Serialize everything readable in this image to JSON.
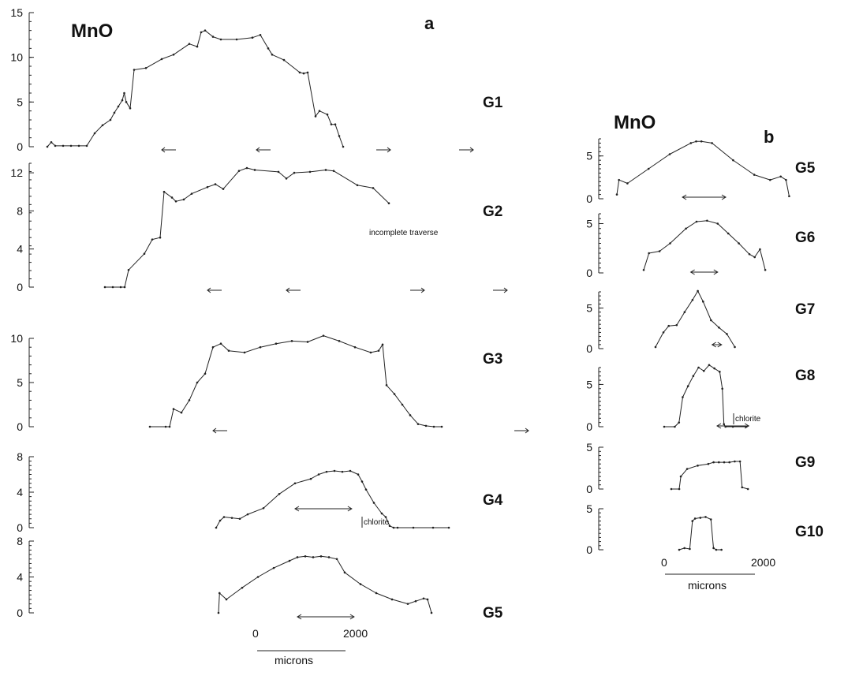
{
  "panel_a": {
    "title": "MnO",
    "letter": "a",
    "scale_bar": {
      "start_label": "0",
      "end_label": "2000",
      "unit_label": "microns"
    }
  },
  "panel_b": {
    "title": "MnO",
    "letter": "b",
    "scale_bar": {
      "start_label": "0",
      "end_label": "2000",
      "unit_label": "microns"
    }
  },
  "chart_data": [
    {
      "type": "line",
      "panel": "a",
      "name": "G1",
      "ylim": [
        0,
        15
      ],
      "yticks": [
        "0",
        "5",
        "10",
        "15"
      ],
      "x": [
        0,
        80,
        160,
        320,
        480,
        640,
        800,
        960,
        1120,
        1280,
        1360,
        1440,
        1520,
        1560,
        1600,
        1680,
        1760,
        2000,
        2320,
        2560,
        2880,
        3040,
        3120,
        3200,
        3360,
        3520,
        3840,
        4160,
        4320,
        4480,
        4560,
        4800,
        5120,
        5200,
        5280,
        5440,
        5520,
        5680,
        5760,
        5840,
        5920,
        6000
      ],
      "y": [
        0,
        0.5,
        0.1,
        0.1,
        0.1,
        0.1,
        0.1,
        1.5,
        2.4,
        3,
        3.8,
        4.5,
        5.2,
        6,
        5,
        4.3,
        8.6,
        8.8,
        9.8,
        10.3,
        11.5,
        11.2,
        12.8,
        13.0,
        12.3,
        12.0,
        12.0,
        12.2,
        12.5,
        11,
        10.3,
        9.7,
        8.3,
        8.2,
        8.3,
        3.4,
        4.0,
        3.6,
        2.5,
        2.5,
        1.2,
        0.0
      ],
      "arrows": [
        [
          2320,
          -1
        ],
        [
          4240,
          -1
        ],
        [
          6960,
          1
        ],
        [
          8640,
          1
        ]
      ]
    },
    {
      "type": "line",
      "panel": "a",
      "name": "G2",
      "ylim": [
        0,
        13
      ],
      "yticks": [
        "0",
        "4",
        "8",
        "12"
      ],
      "x": [
        0,
        160,
        320,
        400,
        480,
        800,
        960,
        1120,
        1200,
        1360,
        1440,
        1600,
        1760,
        2080,
        2240,
        2400,
        2720,
        2880,
        3040,
        3520,
        3680,
        3840,
        4160,
        4480,
        4640,
        5120,
        5440,
        5760
      ],
      "y": [
        0,
        0,
        0,
        0,
        1.8,
        3.5,
        5.0,
        5.2,
        10.0,
        9.4,
        9.0,
        9.2,
        9.8,
        10.5,
        10.8,
        10.3,
        12.2,
        12.5,
        12.3,
        12.1,
        11.4,
        12.0,
        12.1,
        12.3,
        12.2,
        10.7,
        10.4,
        8.8
      ],
      "note": "incomplete traverse",
      "arrows": [
        [
          2080,
          -1
        ],
        [
          3680,
          -1
        ],
        [
          6480,
          1
        ],
        [
          8160,
          1
        ]
      ]
    },
    {
      "type": "line",
      "panel": "a",
      "name": "G3",
      "ylim": [
        0,
        10
      ],
      "yticks": [
        "0",
        "5",
        "10"
      ],
      "x": [
        0,
        320,
        400,
        480,
        640,
        800,
        960,
        1120,
        1280,
        1440,
        1600,
        1920,
        2240,
        2560,
        2880,
        3200,
        3520,
        3840,
        4160,
        4480,
        4640,
        4720,
        4800,
        4960,
        5120,
        5280,
        5440,
        5600,
        5760,
        5920
      ],
      "y": [
        0,
        0,
        0,
        2.0,
        1.6,
        3.0,
        5.0,
        6.0,
        9.0,
        9.4,
        8.6,
        8.4,
        9.0,
        9.4,
        9.7,
        9.6,
        10.3,
        9.7,
        9.0,
        8.4,
        8.6,
        9.3,
        4.7,
        3.7,
        2.5,
        1.3,
        0.3,
        0.1,
        0,
        0
      ],
      "arrows": [
        [
          1280,
          -1
        ],
        [
          7680,
          1
        ]
      ]
    },
    {
      "type": "line",
      "panel": "a",
      "name": "G4",
      "ylim": [
        0,
        8
      ],
      "yticks": [
        "0",
        "4",
        "8"
      ],
      "x": [
        0,
        80,
        160,
        320,
        480,
        640,
        960,
        1280,
        1600,
        1920,
        2080,
        2240,
        2400,
        2560,
        2720,
        2880,
        2960,
        3040,
        3200,
        3360,
        3440,
        3520,
        3600,
        3680,
        4000,
        4400,
        4720
      ],
      "y": [
        0,
        0.8,
        1.2,
        1.1,
        1.0,
        1.5,
        2.2,
        3.8,
        5.0,
        5.5,
        6.0,
        6.3,
        6.4,
        6.3,
        6.4,
        6.0,
        5.2,
        4.3,
        2.8,
        1.6,
        1.2,
        0.2,
        0,
        0,
        0,
        0,
        0
      ],
      "note": "chlorite",
      "span": [
        1600,
        2750
      ]
    },
    {
      "type": "line",
      "panel": "a",
      "name": "G5",
      "ylim": [
        0,
        8
      ],
      "yticks": [
        "0",
        "4",
        "8"
      ],
      "x": [
        0,
        20,
        160,
        480,
        800,
        1120,
        1440,
        1600,
        1760,
        1920,
        2080,
        2240,
        2400,
        2560,
        2880,
        3200,
        3520,
        3840,
        4000,
        4160,
        4240,
        4320
      ],
      "y": [
        0,
        2.2,
        1.5,
        2.8,
        4.0,
        5.0,
        5.8,
        6.2,
        6.3,
        6.2,
        6.3,
        6.2,
        6.0,
        4.5,
        3.2,
        2.2,
        1.5,
        1.0,
        1.3,
        1.6,
        1.5,
        0
      ],
      "span": [
        1600,
        2750
      ]
    },
    {
      "type": "line",
      "panel": "b",
      "name": "G5",
      "ylim": [
        0,
        7
      ],
      "yticks": [
        "0",
        "5"
      ],
      "x": [
        0,
        40,
        200,
        600,
        1000,
        1400,
        1500,
        1600,
        1800,
        2200,
        2600,
        2900,
        3100,
        3200,
        3260
      ],
      "y": [
        0.5,
        2.2,
        1.8,
        3.5,
        5.2,
        6.5,
        6.7,
        6.7,
        6.5,
        4.5,
        2.8,
        2.2,
        2.6,
        2.2,
        0.3
      ],
      "span": [
        1240,
        2060
      ]
    },
    {
      "type": "line",
      "panel": "b",
      "name": "G6",
      "ylim": [
        0,
        6
      ],
      "yticks": [
        "0",
        "5"
      ],
      "x": [
        0,
        100,
        300,
        500,
        800,
        1000,
        1200,
        1400,
        1600,
        1800,
        2000,
        2100,
        2200,
        2300
      ],
      "y": [
        0.3,
        2.0,
        2.2,
        3.0,
        4.5,
        5.2,
        5.3,
        5.0,
        4.0,
        3.0,
        1.9,
        1.6,
        2.4,
        0.3
      ],
      "span": [
        890,
        1400
      ]
    },
    {
      "type": "line",
      "panel": "b",
      "name": "G7",
      "ylim": [
        0,
        7
      ],
      "yticks": [
        "0",
        "5"
      ],
      "x": [
        0,
        150,
        250,
        400,
        550,
        700,
        800,
        900,
        1050,
        1200,
        1350,
        1500
      ],
      "y": [
        0.2,
        2.0,
        2.8,
        2.9,
        4.5,
        6.0,
        7.1,
        5.8,
        3.5,
        2.6,
        1.8,
        0.2
      ],
      "span": [
        1070,
        1250
      ]
    },
    {
      "type": "line",
      "panel": "b",
      "name": "G8",
      "ylim": [
        0,
        7
      ],
      "yticks": [
        "0",
        "5"
      ],
      "x": [
        0,
        200,
        280,
        350,
        450,
        550,
        650,
        750,
        850,
        950,
        1050,
        1100,
        1130,
        1160,
        1300,
        1550
      ],
      "y": [
        0,
        0,
        0.5,
        3.5,
        4.8,
        6.0,
        7.0,
        6.6,
        7.3,
        6.9,
        6.5,
        4.5,
        0.3,
        0,
        0,
        0
      ],
      "note": "chlorite",
      "span": [
        1000,
        1600
      ]
    },
    {
      "type": "line",
      "panel": "b",
      "name": "G9",
      "ylim": [
        0,
        5
      ],
      "yticks": [
        "0",
        "5"
      ],
      "x": [
        0,
        150,
        180,
        300,
        500,
        700,
        800,
        900,
        1000,
        1100,
        1200,
        1300,
        1340,
        1450
      ],
      "y": [
        0,
        0,
        1.5,
        2.4,
        2.8,
        3.0,
        3.2,
        3.2,
        3.2,
        3.2,
        3.3,
        3.3,
        0.2,
        0
      ],
      "span": []
    },
    {
      "type": "line",
      "panel": "b",
      "name": "G10",
      "ylim": [
        0,
        5
      ],
      "yticks": [
        "0",
        "5"
      ],
      "x": [
        0,
        100,
        200,
        250,
        300,
        400,
        500,
        600,
        650,
        700,
        800
      ],
      "y": [
        0,
        0.2,
        0.1,
        3.5,
        3.8,
        3.9,
        4.0,
        3.7,
        0.2,
        0,
        0
      ],
      "span": []
    }
  ]
}
